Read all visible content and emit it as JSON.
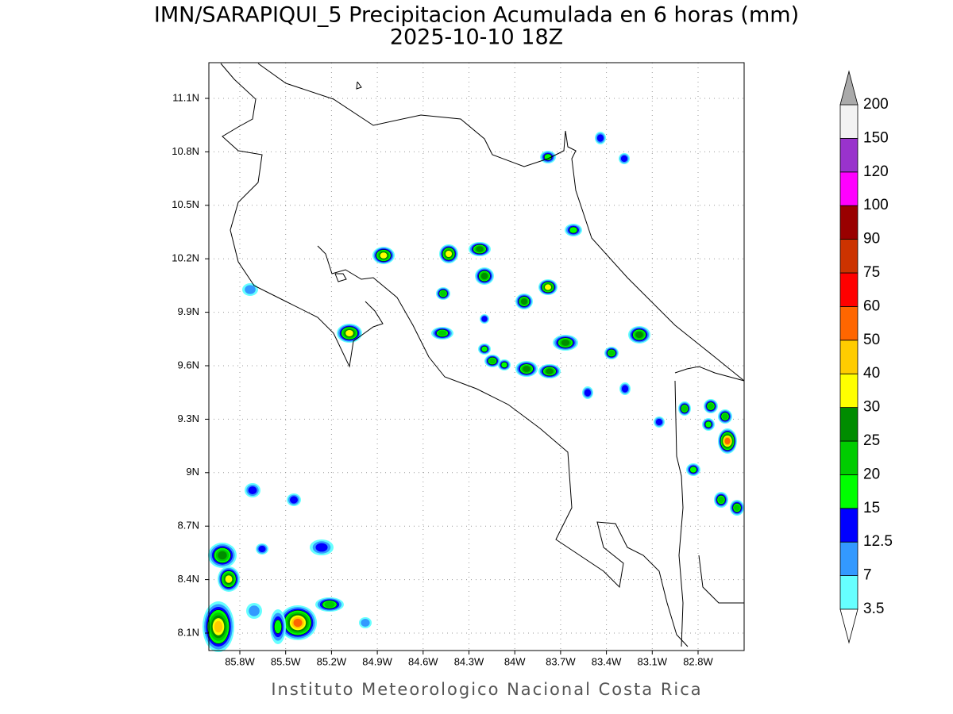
{
  "header": {
    "title": "IMN/SARAPIQUI_5 Precipitacion Acumulada en 6 horas (mm)",
    "subtitle": "2025-10-10 18Z"
  },
  "map": {
    "lon_labels": [
      "85.8W",
      "85.5W",
      "85.2W",
      "84.9W",
      "84.6W",
      "84.3W",
      "84W",
      "83.7W",
      "83.4W",
      "83.1W",
      "82.8W"
    ],
    "lat_labels": [
      "11.1N",
      "10.8N",
      "10.5N",
      "10.2N",
      "9.9N",
      "9.6N",
      "9.3N",
      "9N",
      "8.7N",
      "8.4N",
      "8.1N"
    ]
  },
  "colorbar": {
    "labels": [
      "3.5",
      "7",
      "12.5",
      "15",
      "20",
      "25",
      "30",
      "40",
      "50",
      "60",
      "75",
      "90",
      "100",
      "120",
      "150",
      "200"
    ],
    "colors": [
      "#66ffff",
      "#3399ff",
      "#0000ff",
      "#00ff00",
      "#00cc00",
      "#008c00",
      "#ffff00",
      "#ffcc00",
      "#ff6600",
      "#ff0000",
      "#cc3300",
      "#990000",
      "#ff00ff",
      "#9933cc",
      "#f2f2f2"
    ],
    "over_color": "#aaaaaa",
    "under_color": "#ffffff"
  },
  "footer": "Instituto Meteorologico Nacional Costa Rica"
}
